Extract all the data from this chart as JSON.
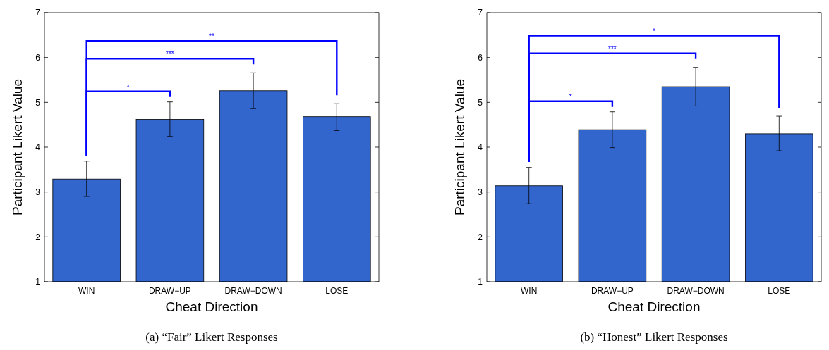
{
  "chart_data": [
    {
      "type": "bar",
      "title": "(a) “Fair” Likert Responses",
      "xlabel": "Cheat Direction",
      "ylabel": "Participant Likert Value",
      "categories": [
        "WIN",
        "DRAW−UP",
        "DRAW−DOWN",
        "LOSE"
      ],
      "values": [
        3.29,
        4.62,
        5.26,
        4.68
      ],
      "errors": [
        [
          2.9,
          3.69
        ],
        [
          4.24,
          5.01
        ],
        [
          4.86,
          5.66
        ],
        [
          4.37,
          4.97
        ]
      ],
      "color": "#3366cc",
      "ylim": [
        1,
        7
      ],
      "yticks": [
        1,
        2,
        3,
        4,
        5,
        6,
        7
      ],
      "annotations": [
        "*",
        "***",
        "**"
      ]
    },
    {
      "type": "bar",
      "title": "(b) “Honest” Likert Responses",
      "xlabel": "Cheat Direction",
      "ylabel": "Participant Likert Value",
      "categories": [
        "WIN",
        "DRAW−UP",
        "DRAW−DOWN",
        "LOSE"
      ],
      "values": [
        3.14,
        4.39,
        5.35,
        4.3
      ],
      "errors": [
        [
          2.74,
          3.55
        ],
        [
          3.99,
          4.79
        ],
        [
          4.92,
          5.78
        ],
        [
          3.92,
          4.69
        ]
      ],
      "color": "#3366cc",
      "ylim": [
        1,
        7
      ],
      "yticks": [
        1,
        2,
        3,
        4,
        5,
        6,
        7
      ],
      "annotations": [
        "*",
        "***",
        "*"
      ]
    }
  ]
}
